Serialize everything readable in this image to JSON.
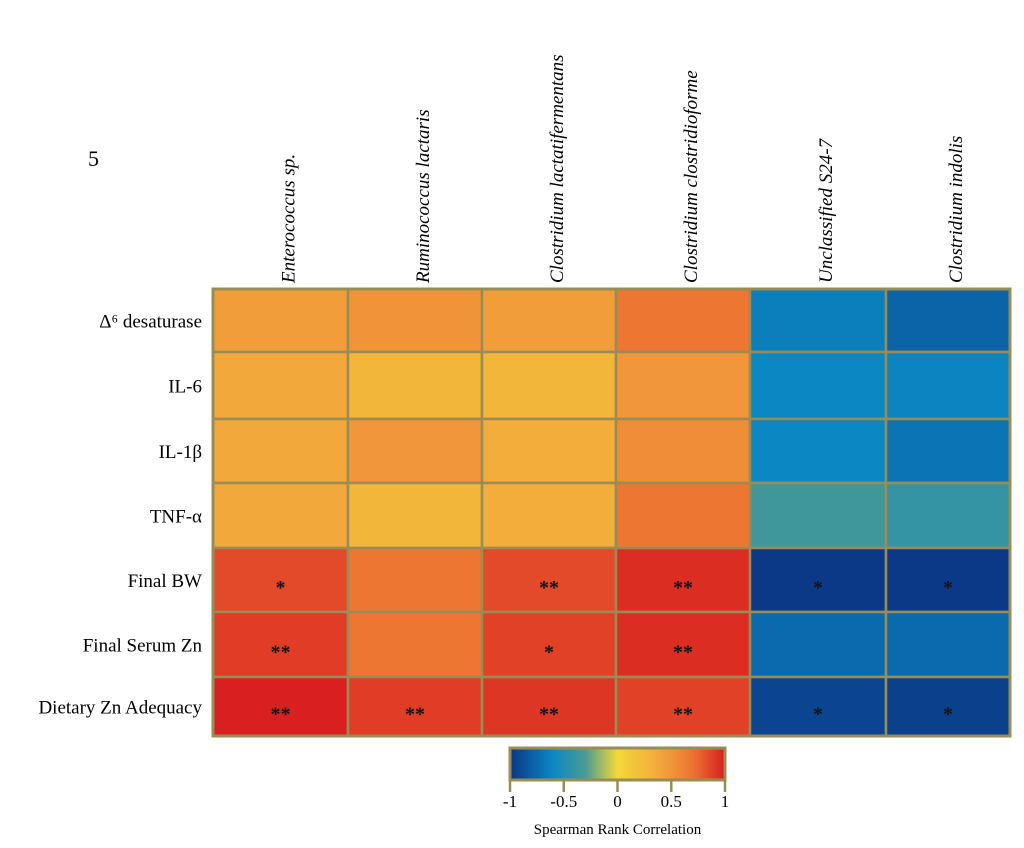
{
  "panel_label": "5",
  "chart_data": {
    "type": "heatmap",
    "title": "",
    "columns": [
      "Enterococcus sp.",
      "Ruminococcus lactaris",
      "Clostridium lactatifermentans",
      "Clostridium clostridioforme",
      "Unclassified S24-7",
      "Clostridium indolis"
    ],
    "rows": [
      "Δ⁶ desaturase",
      "IL-6",
      "IL-1β",
      "TNF-α",
      "Final BW",
      "Final Serum Zn",
      "Dietary Zn Adequacy"
    ],
    "values": [
      [
        0.45,
        0.52,
        0.45,
        0.68,
        -0.65,
        -0.78
      ],
      [
        0.38,
        0.28,
        0.28,
        0.5,
        -0.6,
        -0.62
      ],
      [
        0.38,
        0.5,
        0.35,
        0.55,
        -0.6,
        -0.7
      ],
      [
        0.38,
        0.28,
        0.35,
        0.68,
        -0.35,
        -0.4
      ],
      [
        0.85,
        0.68,
        0.85,
        0.95,
        -0.98,
        -0.98
      ],
      [
        0.9,
        0.68,
        0.88,
        0.95,
        -0.75,
        -0.75
      ],
      [
        1.0,
        0.9,
        0.92,
        0.88,
        -0.93,
        -0.95
      ]
    ],
    "significance": [
      [
        "",
        "",
        "",
        "",
        "",
        ""
      ],
      [
        "",
        "",
        "",
        "",
        "",
        ""
      ],
      [
        "",
        "",
        "",
        "",
        "",
        ""
      ],
      [
        "",
        "",
        "",
        "",
        "",
        ""
      ],
      [
        "*",
        "",
        "**",
        "**",
        "*",
        "*"
      ],
      [
        "**",
        "",
        "*",
        "**",
        "",
        ""
      ],
      [
        "**",
        "**",
        "**",
        "**",
        "*",
        "*"
      ]
    ],
    "colorbar": {
      "title": "Spearman Rank Correlation",
      "range": [
        -1,
        1
      ],
      "ticks": [
        -1,
        -0.5,
        0,
        0.5,
        1
      ],
      "tick_labels": [
        "-1",
        "-0.5",
        "0",
        "0.5",
        "1"
      ],
      "placement": "bottom-center"
    },
    "colormap": [
      {
        "v": -1.0,
        "c": "#0b3585"
      },
      {
        "v": -0.8,
        "c": "#0b5fa5"
      },
      {
        "v": -0.6,
        "c": "#0b88c4"
      },
      {
        "v": -0.3,
        "c": "#4a9a93"
      },
      {
        "v": 0.0,
        "c": "#f3d83a"
      },
      {
        "v": 0.3,
        "c": "#f2b43a"
      },
      {
        "v": 0.5,
        "c": "#f1963a"
      },
      {
        "v": 0.7,
        "c": "#ec7332"
      },
      {
        "v": 0.85,
        "c": "#e34a29"
      },
      {
        "v": 1.0,
        "c": "#d91f1f"
      }
    ],
    "grid_color": "#9a8c55"
  }
}
